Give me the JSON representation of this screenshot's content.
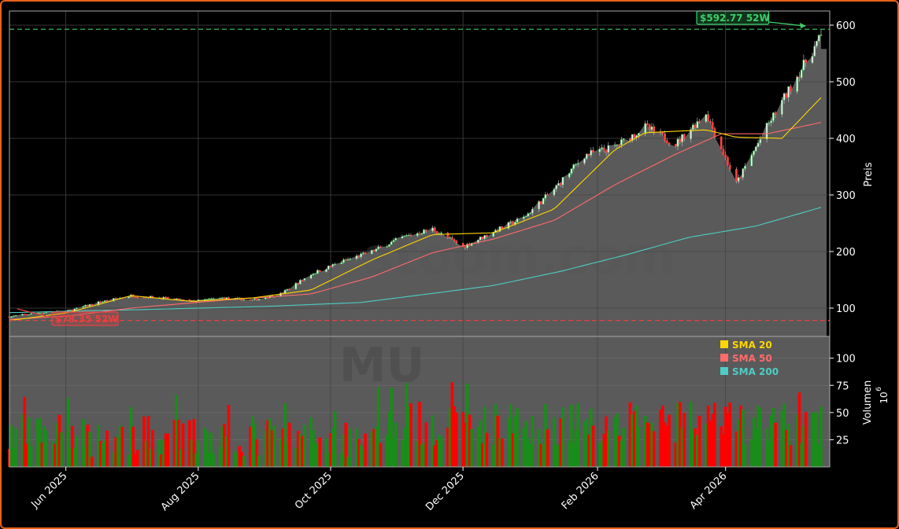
{
  "chart_data": {
    "type": "candlestick+line+bar",
    "ticker_watermark": "MU",
    "site_watermark": "stoom.com",
    "x_ticks": [
      "Jun 2025",
      "Aug 2025",
      "Oct 2025",
      "Dec 2025",
      "Feb 2026",
      "Apr 2026"
    ],
    "x_tick_positions": [
      "2025-06-01",
      "2025-08-01",
      "2025-10-01",
      "2025-12-01",
      "2026-02-01",
      "2026-04-01"
    ],
    "x_range": [
      "2025-05-06",
      "2026-05-19"
    ],
    "price_axis": {
      "label": "Preis",
      "ticks": [
        100,
        200,
        300,
        400,
        500,
        600
      ],
      "ylim": [
        50,
        625
      ]
    },
    "volume_axis": {
      "label": "Volumen",
      "exponent": "10",
      "exponent_power": "6",
      "ticks": [
        25,
        50,
        75,
        100
      ],
      "ylim": [
        0,
        120
      ]
    },
    "high_52w": {
      "value": 592.77,
      "label": "$592.77 52W",
      "color": "#3ecf6a"
    },
    "low_52w": {
      "value": 78.35,
      "label": "$78.35 52W",
      "color": "#e84040"
    },
    "legend": [
      {
        "name": "SMA 20",
        "color": "#ffd700"
      },
      {
        "name": "SMA 50",
        "color": "#ff6b6b"
      },
      {
        "name": "SMA 200",
        "color": "#4ecdc4"
      }
    ],
    "price_anchors": [
      [
        "2025-05-06",
        85
      ],
      [
        "2025-05-20",
        92
      ],
      [
        "2025-06-02",
        95
      ],
      [
        "2025-06-16",
        110
      ],
      [
        "2025-07-01",
        122
      ],
      [
        "2025-07-15",
        118
      ],
      [
        "2025-07-29",
        112
      ],
      [
        "2025-08-12",
        118
      ],
      [
        "2025-08-26",
        114
      ],
      [
        "2025-09-08",
        125
      ],
      [
        "2025-09-22",
        160
      ],
      [
        "2025-10-06",
        182
      ],
      [
        "2025-10-20",
        200
      ],
      [
        "2025-11-03",
        225
      ],
      [
        "2025-11-17",
        240
      ],
      [
        "2025-12-01",
        208
      ],
      [
        "2025-12-15",
        235
      ],
      [
        "2025-12-29",
        260
      ],
      [
        "2026-01-12",
        310
      ],
      [
        "2026-01-26",
        370
      ],
      [
        "2026-02-09",
        385
      ],
      [
        "2026-02-23",
        420
      ],
      [
        "2026-03-09",
        390
      ],
      [
        "2026-03-23",
        445
      ],
      [
        "2026-04-06",
        320
      ],
      [
        "2026-04-20",
        420
      ],
      [
        "2026-05-04",
        510
      ],
      [
        "2026-05-15",
        580
      ]
    ],
    "sma20_anchors": [
      [
        "2025-05-06",
        78
      ],
      [
        "2025-06-02",
        92
      ],
      [
        "2025-07-01",
        122
      ],
      [
        "2025-07-29",
        112
      ],
      [
        "2025-08-26",
        118
      ],
      [
        "2025-09-22",
        132
      ],
      [
        "2025-10-20",
        185
      ],
      [
        "2025-11-17",
        230
      ],
      [
        "2025-12-15",
        233
      ],
      [
        "2026-01-12",
        275
      ],
      [
        "2026-02-09",
        380
      ],
      [
        "2026-02-23",
        410
      ],
      [
        "2026-03-23",
        415
      ],
      [
        "2026-04-06",
        402
      ],
      [
        "2026-04-27",
        400
      ],
      [
        "2026-05-15",
        472
      ]
    ],
    "sma50_anchors": [
      [
        "2025-05-06",
        80
      ],
      [
        "2025-06-02",
        86
      ],
      [
        "2025-07-01",
        100
      ],
      [
        "2025-08-12",
        114
      ],
      [
        "2025-09-22",
        125
      ],
      [
        "2025-10-20",
        155
      ],
      [
        "2025-11-17",
        198
      ],
      [
        "2025-12-15",
        222
      ],
      [
        "2026-01-12",
        255
      ],
      [
        "2026-02-09",
        318
      ],
      [
        "2026-03-09",
        372
      ],
      [
        "2026-03-30",
        408
      ],
      [
        "2026-04-20",
        408
      ],
      [
        "2026-05-15",
        428
      ]
    ],
    "sma200_anchors": [
      [
        "2025-05-06",
        92
      ],
      [
        "2025-07-01",
        97
      ],
      [
        "2025-09-01",
        103
      ],
      [
        "2025-10-15",
        110
      ],
      [
        "2025-11-15",
        125
      ],
      [
        "2025-12-15",
        140
      ],
      [
        "2026-01-15",
        165
      ],
      [
        "2026-02-15",
        195
      ],
      [
        "2026-03-15",
        225
      ],
      [
        "2026-04-15",
        245
      ],
      [
        "2026-05-15",
        278
      ]
    ]
  },
  "colors": {
    "background": "#000000",
    "panel": "#5a5a5a",
    "grid": "#444444",
    "up": "#1a8c1a",
    "down": "#ff0000",
    "axis_text": "#ffffff",
    "frame": "#e8621a"
  }
}
